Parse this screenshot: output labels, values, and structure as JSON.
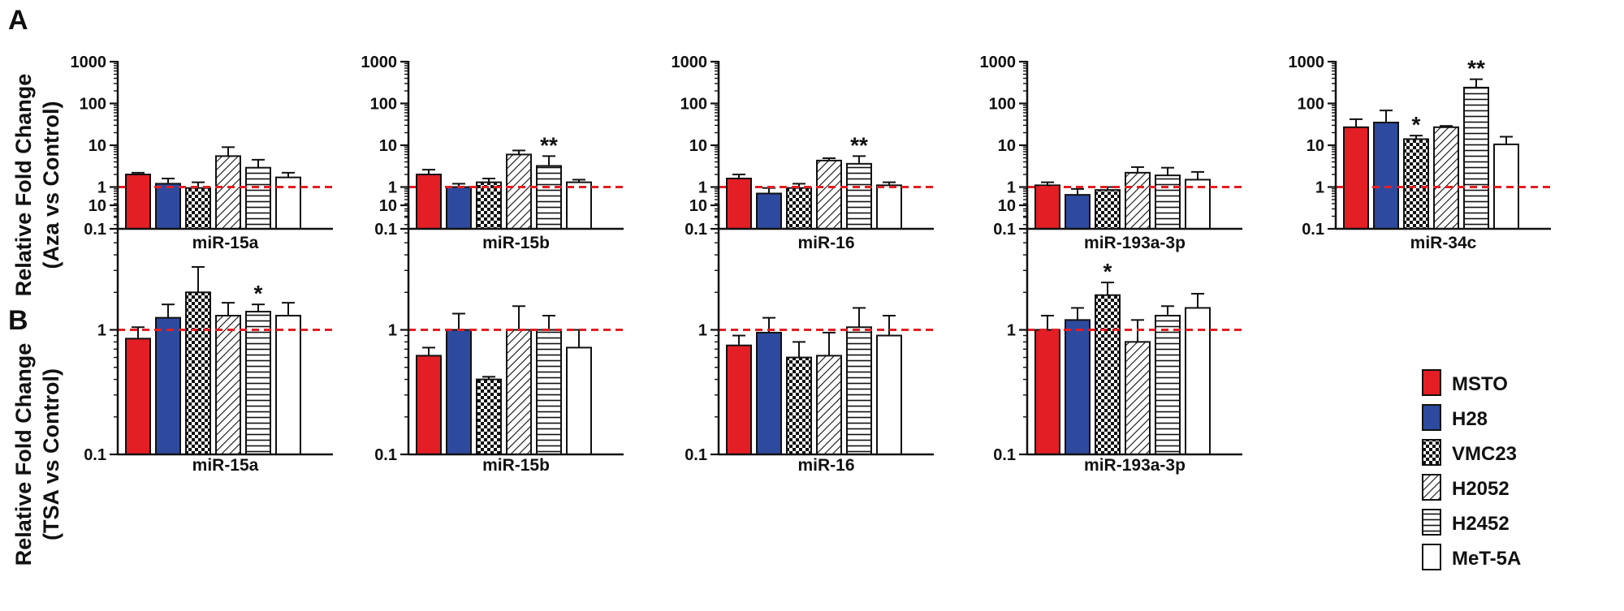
{
  "figure": {
    "panel_a_letter": "A",
    "panel_b_letter": "B",
    "ylabel_a_line1": "Relative Fold Change",
    "ylabel_a_line2": "(Aza vs Control)",
    "ylabel_b_line1": "Relative Fold Change",
    "ylabel_b_line2": "(TSA vs Control)"
  },
  "legend": [
    {
      "label": "MSTO",
      "color": "#e31e24",
      "pattern": "solid"
    },
    {
      "label": "H28",
      "color": "#2e4a9e",
      "pattern": "solid"
    },
    {
      "label": "VMC23",
      "color": "#ffffff",
      "pattern": "checker"
    },
    {
      "label": "H2052",
      "color": "#ffffff",
      "pattern": "diagonal"
    },
    {
      "label": "H2452",
      "color": "#ffffff",
      "pattern": "horizontal"
    },
    {
      "label": "MeT-5A",
      "color": "#ffffff",
      "pattern": "none"
    }
  ],
  "colors": {
    "reference_line": "#e31e24",
    "axis": "#111111",
    "msto": "#e31e24",
    "h28": "#2e4a9e"
  },
  "chart_data": [
    {
      "type": "bar",
      "panel": "A",
      "xlabel": "miR-15a",
      "yscale": "log",
      "ylim": [
        0.1,
        1000
      ],
      "yticks": [
        "0.1",
        "1",
        "10",
        "100",
        "1000"
      ],
      "reference_line": 1,
      "categories": [
        "MSTO",
        "H28",
        "VMC23",
        "H2052",
        "H2452",
        "MeT-5A"
      ],
      "values": [
        2.0,
        1.2,
        0.95,
        5.5,
        2.9,
        1.7
      ],
      "errors": [
        2.2,
        1.6,
        1.3,
        9.0,
        4.5,
        2.2
      ],
      "significance": [
        "",
        "",
        "",
        "",
        "",
        ""
      ]
    },
    {
      "type": "bar",
      "panel": "A",
      "xlabel": "miR-15b",
      "yscale": "log",
      "ylim": [
        0.1,
        1000
      ],
      "yticks": [
        "0.1",
        "1",
        "10",
        "100",
        "1000"
      ],
      "reference_line": 1,
      "categories": [
        "MSTO",
        "H28",
        "VMC23",
        "H2052",
        "H2452",
        "MeT-5A"
      ],
      "values": [
        2.0,
        1.0,
        1.3,
        6.0,
        3.2,
        1.3
      ],
      "errors": [
        2.6,
        1.2,
        1.6,
        7.5,
        5.5,
        1.5
      ],
      "significance": [
        "",
        "",
        "",
        "",
        "**",
        ""
      ]
    },
    {
      "type": "bar",
      "panel": "A",
      "xlabel": "miR-16",
      "yscale": "log",
      "ylim": [
        0.1,
        1000
      ],
      "yticks": [
        "0.1",
        "1",
        "10",
        "100",
        "1000"
      ],
      "reference_line": 1,
      "categories": [
        "MSTO",
        "H28",
        "VMC23",
        "H2052",
        "H2452",
        "MeT-5A"
      ],
      "values": [
        1.6,
        0.7,
        0.95,
        4.3,
        3.6,
        1.1
      ],
      "errors": [
        2.0,
        0.95,
        1.2,
        4.9,
        5.5,
        1.3
      ],
      "significance": [
        "",
        "",
        "",
        "",
        "**",
        ""
      ]
    },
    {
      "type": "bar",
      "panel": "A",
      "xlabel": "miR-193a-3p",
      "yscale": "log",
      "ylim": [
        0.1,
        1000
      ],
      "yticks": [
        "0.1",
        "1",
        "10",
        "100",
        "1000"
      ],
      "reference_line": 1,
      "categories": [
        "MSTO",
        "H28",
        "VMC23",
        "H2052",
        "H2452",
        "MeT-5A"
      ],
      "values": [
        1.1,
        0.65,
        0.85,
        2.2,
        1.9,
        1.5
      ],
      "errors": [
        1.3,
        0.9,
        1.0,
        3.0,
        2.9,
        2.3
      ],
      "significance": [
        "",
        "",
        "",
        "",
        "",
        ""
      ]
    },
    {
      "type": "bar",
      "panel": "A",
      "xlabel": "miR-34c",
      "yscale": "log",
      "ylim": [
        0.1,
        1000
      ],
      "yticks": [
        "0.1",
        "1",
        "10",
        "100",
        "1000"
      ],
      "reference_line": 1,
      "categories": [
        "MSTO",
        "H28",
        "VMC23",
        "H2052",
        "H2452",
        "MeT-5A"
      ],
      "values": [
        27,
        35,
        14,
        27,
        240,
        10.5
      ],
      "errors": [
        42,
        68,
        17,
        29,
        380,
        16
      ],
      "significance": [
        "",
        "",
        "*",
        "",
        "**",
        ""
      ]
    },
    {
      "type": "bar",
      "panel": "B",
      "xlabel": "miR-15a",
      "yscale": "log",
      "ylim": [
        0.1,
        10
      ],
      "yticks": [
        "0.1",
        "1",
        "10"
      ],
      "reference_line": 1,
      "categories": [
        "MSTO",
        "H28",
        "VMC23",
        "H2052",
        "H2452",
        "MeT-5A"
      ],
      "values": [
        0.85,
        1.25,
        2.0,
        1.3,
        1.4,
        1.3
      ],
      "errors": [
        1.05,
        1.6,
        3.2,
        1.65,
        1.6,
        1.65
      ],
      "significance": [
        "",
        "",
        "",
        "",
        "*",
        ""
      ]
    },
    {
      "type": "bar",
      "panel": "B",
      "xlabel": "miR-15b",
      "yscale": "log",
      "ylim": [
        0.1,
        10
      ],
      "yticks": [
        "0.1",
        "1",
        "10"
      ],
      "reference_line": 1,
      "categories": [
        "MSTO",
        "H28",
        "VMC23",
        "H2052",
        "H2452",
        "MeT-5A"
      ],
      "values": [
        0.62,
        1.0,
        0.4,
        1.0,
        1.0,
        0.72
      ],
      "errors": [
        0.72,
        1.35,
        0.42,
        1.55,
        1.3,
        1.0
      ],
      "significance": [
        "",
        "",
        "",
        "",
        "",
        ""
      ]
    },
    {
      "type": "bar",
      "panel": "B",
      "xlabel": "miR-16",
      "yscale": "log",
      "ylim": [
        0.1,
        10
      ],
      "yticks": [
        "0.1",
        "1",
        "10"
      ],
      "reference_line": 1,
      "categories": [
        "MSTO",
        "H28",
        "VMC23",
        "H2052",
        "H2452",
        "MeT-5A"
      ],
      "values": [
        0.75,
        0.95,
        0.6,
        0.62,
        1.05,
        0.9
      ],
      "errors": [
        0.9,
        1.25,
        0.8,
        0.95,
        1.5,
        1.3
      ],
      "significance": [
        "",
        "",
        "",
        "",
        "",
        ""
      ]
    },
    {
      "type": "bar",
      "panel": "B",
      "xlabel": "miR-193a-3p",
      "yscale": "log",
      "ylim": [
        0.1,
        10
      ],
      "yticks": [
        "0.1",
        "1",
        "10"
      ],
      "reference_line": 1,
      "categories": [
        "MSTO",
        "H28",
        "VMC23",
        "H2052",
        "H2452",
        "MeT-5A"
      ],
      "values": [
        1.0,
        1.2,
        1.9,
        0.8,
        1.3,
        1.5
      ],
      "errors": [
        1.3,
        1.5,
        2.4,
        1.2,
        1.55,
        1.95
      ],
      "significance": [
        "",
        "",
        "*",
        "",
        "",
        ""
      ]
    }
  ]
}
